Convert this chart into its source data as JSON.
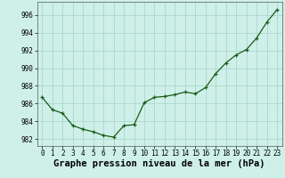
{
  "x": [
    0,
    1,
    2,
    3,
    4,
    5,
    6,
    7,
    8,
    9,
    10,
    11,
    12,
    13,
    14,
    15,
    16,
    17,
    18,
    19,
    20,
    21,
    22,
    23
  ],
  "y": [
    986.7,
    985.3,
    984.9,
    983.5,
    983.1,
    982.8,
    982.4,
    982.2,
    983.5,
    983.6,
    986.1,
    986.7,
    986.8,
    987.0,
    987.3,
    987.1,
    987.8,
    989.4,
    990.6,
    991.5,
    992.1,
    993.4,
    995.2,
    996.6
  ],
  "line_color": "#1a5c1a",
  "marker": "+",
  "marker_size": 3.5,
  "marker_linewidth": 0.9,
  "line_width": 0.9,
  "bg_color": "#cef0e8",
  "grid_color": "#aad8ce",
  "ylabel_ticks": [
    982,
    984,
    986,
    988,
    990,
    992,
    994,
    996
  ],
  "xlabel_ticks": [
    0,
    1,
    2,
    3,
    4,
    5,
    6,
    7,
    8,
    9,
    10,
    11,
    12,
    13,
    14,
    15,
    16,
    17,
    18,
    19,
    20,
    21,
    22,
    23
  ],
  "xlabel": "Graphe pression niveau de la mer (hPa)",
  "ylim": [
    981.2,
    997.5
  ],
  "xlim": [
    -0.5,
    23.5
  ],
  "tick_fontsize": 5.5,
  "xlabel_fontsize": 7.5
}
